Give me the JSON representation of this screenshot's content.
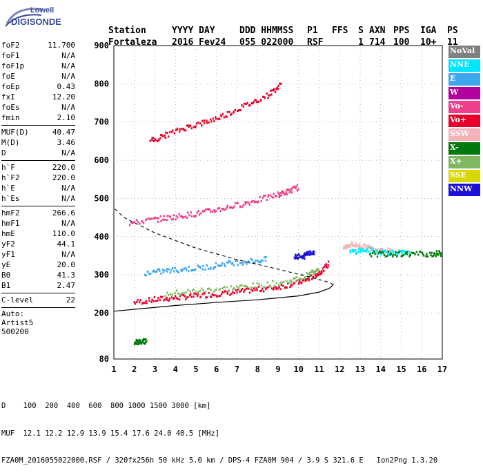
{
  "logo": {
    "line1": "Lowell",
    "line2": "DIGISONDE"
  },
  "header": {
    "labels": [
      "Station",
      "YYYY DAY",
      "DDD HHMMSS",
      "P1",
      "FFS",
      "S",
      "AXN",
      "PPS",
      "IGA",
      "PS"
    ],
    "values": [
      "Fortaleza",
      "2016 Fev24",
      "055 022000",
      "RSF",
      "",
      "1",
      "714",
      "100",
      "10+",
      "11"
    ]
  },
  "params": {
    "group1": [
      {
        "name": "foF2",
        "value": "11.700"
      },
      {
        "name": "foF1",
        "value": "N/A"
      },
      {
        "name": "foF1p",
        "value": "N/A"
      },
      {
        "name": "foE",
        "value": "N/A"
      },
      {
        "name": "foEp",
        "value": "0.43"
      },
      {
        "name": "fxI",
        "value": "12.20"
      },
      {
        "name": "foEs",
        "value": "N/A"
      },
      {
        "name": "fmin",
        "value": "2.10"
      }
    ],
    "group2": [
      {
        "name": "MUF(D)",
        "value": "40.47"
      },
      {
        "name": "M(D)",
        "value": "3.46"
      },
      {
        "name": "D",
        "value": "N/A"
      }
    ],
    "group3": [
      {
        "name": "h`F",
        "value": "220.0"
      },
      {
        "name": "h`F2",
        "value": "220.0"
      },
      {
        "name": "h`E",
        "value": "N/A"
      },
      {
        "name": "h`Es",
        "value": "N/A"
      }
    ],
    "group4": [
      {
        "name": "hmF2",
        "value": "266.6"
      },
      {
        "name": "hmF1",
        "value": "N/A"
      },
      {
        "name": "hmE",
        "value": "110.0"
      },
      {
        "name": "yF2",
        "value": "44.1"
      },
      {
        "name": "yF1",
        "value": "N/A"
      },
      {
        "name": "yE",
        "value": "20.0"
      },
      {
        "name": "B0",
        "value": "41.3"
      },
      {
        "name": "B1",
        "value": "2.47"
      }
    ],
    "group5": [
      {
        "name": "C-level",
        "value": "22"
      }
    ],
    "auto": [
      "Auto:",
      "Artist5",
      "500200"
    ]
  },
  "legend": [
    {
      "label": "NoVal",
      "bg": "#808080",
      "fg": "#ffffff"
    },
    {
      "label": "NNE",
      "bg": "#00e5ff",
      "fg": "#ffffff"
    },
    {
      "label": "E",
      "bg": "#3ea6f0",
      "fg": "#ffffff"
    },
    {
      "label": "W",
      "bg": "#b4009e",
      "fg": "#ffffff"
    },
    {
      "label": "Vo-",
      "bg": "#ef3e8c",
      "fg": "#ffffff"
    },
    {
      "label": "Vo+",
      "bg": "#e8002a",
      "fg": "#ffffff"
    },
    {
      "label": "SSW",
      "bg": "#f4b3b8",
      "fg": "#ffffff"
    },
    {
      "label": "X-",
      "bg": "#007a0a",
      "fg": "#ffffff"
    },
    {
      "label": "X+",
      "bg": "#80b860",
      "fg": "#ffffff"
    },
    {
      "label": "SSE",
      "bg": "#d8d800",
      "fg": "#ffffff"
    },
    {
      "label": "NNW",
      "bg": "#1a10d8",
      "fg": "#ffffff"
    }
  ],
  "footer": {
    "line1": "D    100  200  400  600  800 1000 1500 3000 [km]",
    "line2": "MUF  12.1 12.2 12.9 13.9 15.4 17.6 24.0 40.5 [MHz]",
    "line3": "FZA0M_2016055022000.RSF / 320fx256h 50 kHz 5.0 km / DPS-4 FZA0M 904 / 3.9 S 321.6 E   Ion2Png 1.3.20"
  },
  "chart_data": {
    "type": "scatter",
    "xlim": [
      1,
      17
    ],
    "ylim": [
      80,
      900
    ],
    "xticks": [
      1,
      2,
      3,
      4,
      5,
      6,
      7,
      8,
      9,
      10,
      11,
      12,
      13,
      14,
      15,
      16,
      17
    ],
    "yticks": [
      80,
      200,
      300,
      400,
      500,
      600,
      700,
      800,
      900
    ],
    "grid": "dotted",
    "echo_traces": [
      {
        "name": "Vo+",
        "color": "#e8002a",
        "points": [
          [
            2.0,
            228
          ],
          [
            3.0,
            235
          ],
          [
            4.0,
            240
          ],
          [
            5.0,
            245
          ],
          [
            6.0,
            250
          ],
          [
            7.0,
            255
          ],
          [
            8.0,
            262
          ],
          [
            9.0,
            268
          ],
          [
            10.0,
            280
          ],
          [
            10.5,
            290
          ],
          [
            11.0,
            305
          ],
          [
            11.5,
            330
          ]
        ]
      },
      {
        "name": "X+",
        "color": "#80b860",
        "points": [
          [
            3.5,
            250
          ],
          [
            5.0,
            258
          ],
          [
            6.5,
            265
          ],
          [
            8.0,
            272
          ],
          [
            9.5,
            282
          ],
          [
            10.5,
            300
          ],
          [
            11.0,
            320
          ]
        ]
      },
      {
        "name": "Vo-",
        "color": "#ef3e8c",
        "points": [
          [
            1.8,
            435
          ],
          [
            3,
            445
          ],
          [
            4,
            452
          ],
          [
            5,
            460
          ],
          [
            6,
            470
          ],
          [
            7,
            482
          ],
          [
            8,
            495
          ],
          [
            9,
            510
          ],
          [
            9.5,
            518
          ],
          [
            10,
            530
          ]
        ]
      },
      {
        "name": "Vo+",
        "color": "#e8002a",
        "points": [
          [
            2.8,
            650
          ],
          [
            3.5,
            665
          ],
          [
            4.5,
            685
          ],
          [
            5.5,
            700
          ],
          [
            6.5,
            720
          ],
          [
            7.5,
            745
          ],
          [
            8.5,
            770
          ],
          [
            9.2,
            800
          ]
        ]
      },
      {
        "name": "E",
        "color": "#3ea6f0",
        "points": [
          [
            2.5,
            305
          ],
          [
            3.5,
            310
          ],
          [
            4.5,
            315
          ],
          [
            5.5,
            320
          ],
          [
            6.5,
            330
          ],
          [
            7.5,
            335
          ],
          [
            8.5,
            340
          ]
        ]
      },
      {
        "name": "SSW",
        "color": "#f4b3b8",
        "points": [
          [
            12.2,
            370
          ],
          [
            12.5,
            380
          ],
          [
            13,
            375
          ],
          [
            13.5,
            370
          ],
          [
            14,
            365
          ],
          [
            14.5,
            362
          ]
        ]
      },
      {
        "name": "NNE",
        "color": "#00e5ff",
        "points": [
          [
            12.5,
            360
          ],
          [
            13.2,
            365
          ],
          [
            14.0,
            360
          ],
          [
            14.8,
            358
          ],
          [
            15.5,
            355
          ]
        ]
      },
      {
        "name": "X-",
        "color": "#007a0a",
        "points": [
          [
            13.5,
            355
          ],
          [
            14.5,
            354
          ],
          [
            15.5,
            355
          ],
          [
            16.5,
            355
          ],
          [
            17,
            356
          ]
        ]
      },
      {
        "name": "NNW",
        "color": "#1a10d8",
        "points": [
          [
            9.8,
            350
          ],
          [
            10.2,
            345
          ],
          [
            10.5,
            360
          ],
          [
            10.8,
            355
          ]
        ]
      },
      {
        "name": "X-",
        "color": "#007a0a",
        "points": [
          [
            2.0,
            125
          ],
          [
            2.3,
            126
          ],
          [
            2.6,
            127
          ]
        ]
      }
    ],
    "profile_curve": {
      "points": [
        [
          1,
          205
        ],
        [
          2,
          210
        ],
        [
          4,
          220
        ],
        [
          6,
          228
        ],
        [
          8,
          235
        ],
        [
          10,
          245
        ],
        [
          11,
          255
        ],
        [
          11.5,
          265
        ],
        [
          11.7,
          275
        ],
        [
          11.4,
          282
        ],
        [
          10.5,
          295
        ],
        [
          9,
          315
        ],
        [
          7,
          340
        ],
        [
          5,
          370
        ],
        [
          3,
          410
        ],
        [
          1.5,
          450
        ],
        [
          1,
          475
        ]
      ]
    }
  }
}
